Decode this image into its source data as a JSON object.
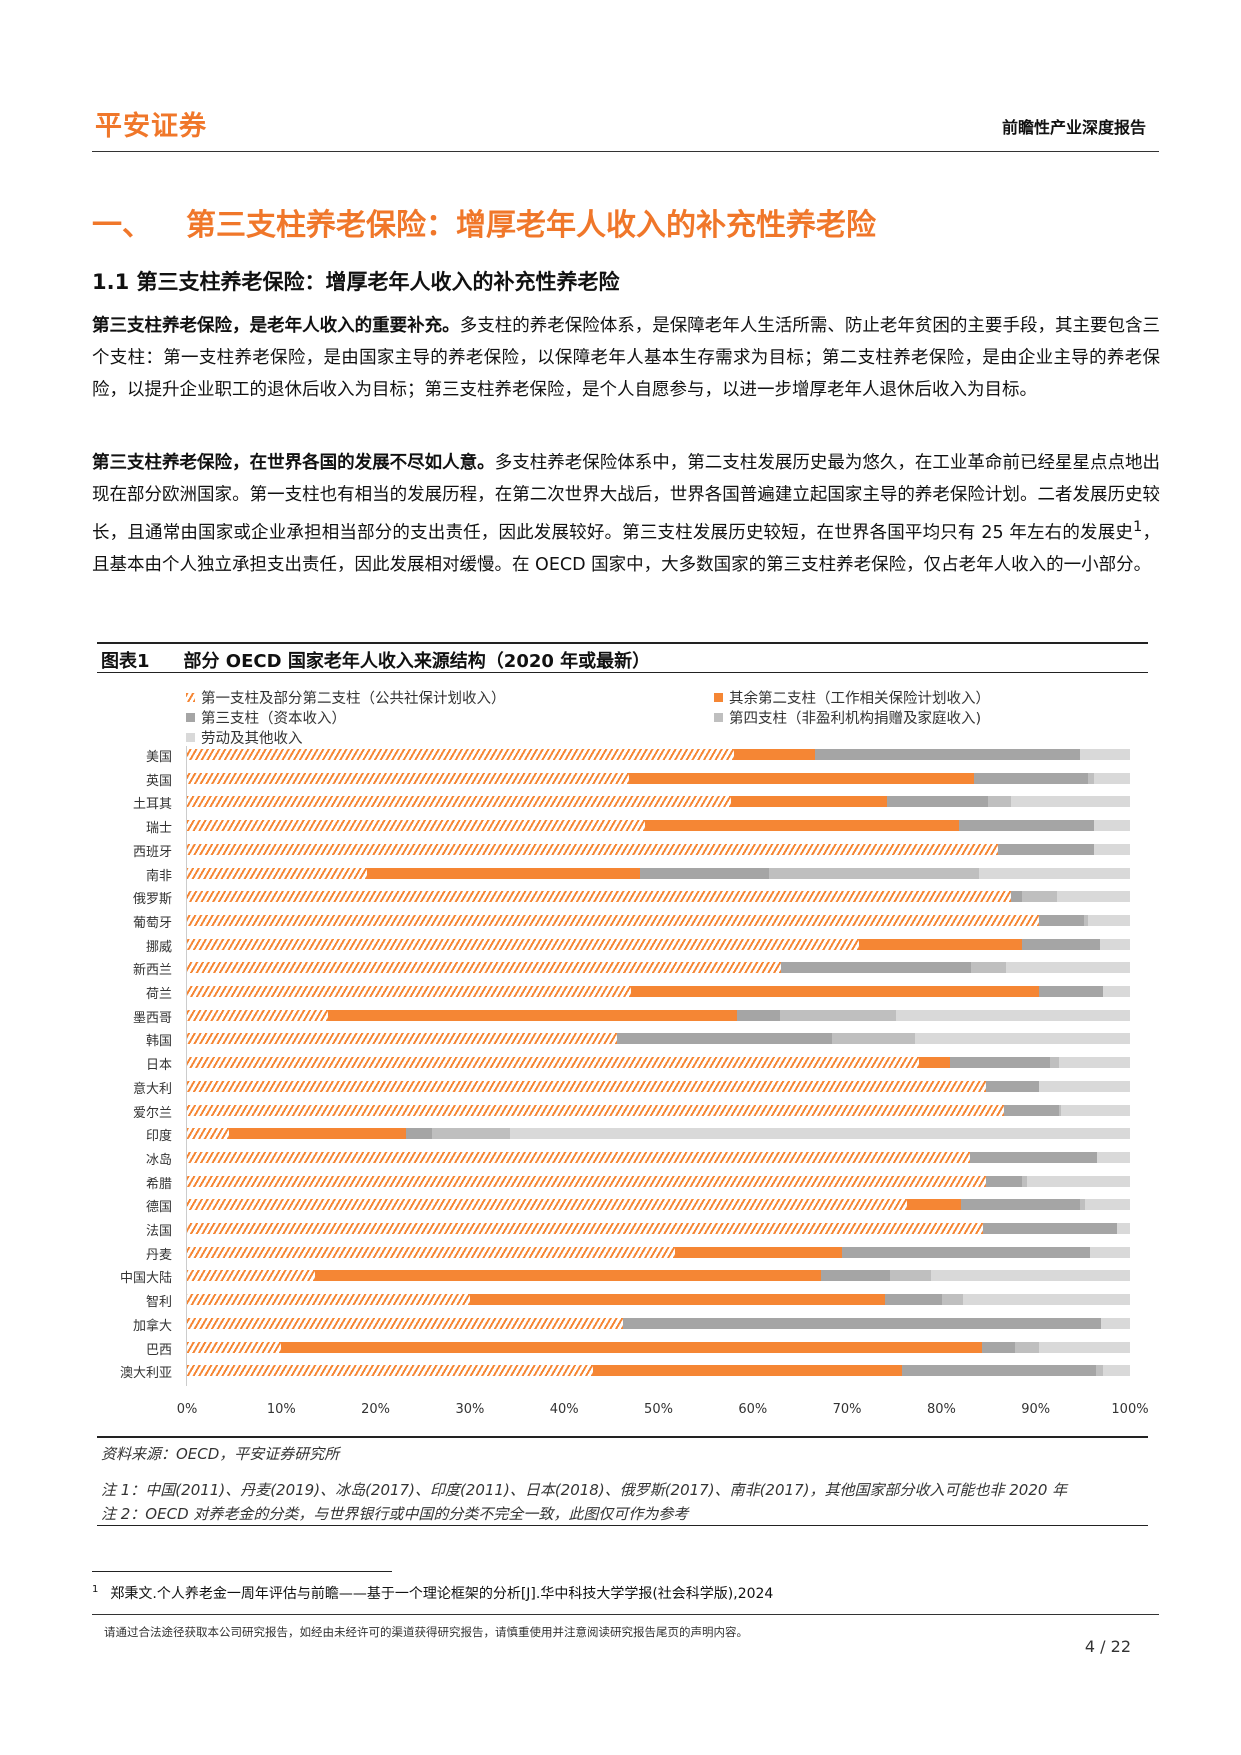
{
  "header": {
    "logo": "平安证券",
    "doc_type": "前瞻性产业深度报告"
  },
  "section": {
    "num": "一、",
    "title": "第三支柱养老保险：增厚老年人收入的补充性养老险"
  },
  "subsection": "1.1 第三支柱养老保险：增厚老年人收入的补充性养老险",
  "paragraphs": [
    {
      "lead": "第三支柱养老保险，是老年人收入的重要补充。",
      "body": "多支柱的养老保险体系，是保障老年人生活所需、防止老年贫困的主要手段，其主要包含三个支柱：第一支柱养老保险，是由国家主导的养老保险，以保障老年人基本生存需求为目标；第二支柱养老保险，是由企业主导的养老保险，以提升企业职工的退休后收入为目标；第三支柱养老保险，是个人自愿参与，以进一步增厚老年人退休后收入为目标。"
    },
    {
      "lead": "第三支柱养老保险，在世界各国的发展不尽如人意。",
      "body": "多支柱养老保险体系中，第二支柱发展历史最为悠久，在工业革命前已经星星点点地出现在部分欧洲国家。第一支柱也有相当的发展历程，在第二次世界大战后，世界各国普遍建立起国家主导的养老保险计划。二者发展历史较长，且通常由国家或企业承担相当部分的支出责任，因此发展较好。第三支柱发展历史较短，在世界各国平均只有 25 年左右的发展史",
      "sup": "1",
      "body2": "，且基本由个人独立承担支出责任，因此发展相对缓慢。在 OECD 国家中，大多数国家的第三支柱养老保险，仅占老年人收入的一小部分。"
    }
  ],
  "chart_data": {
    "type": "bar",
    "label": "图表1",
    "title": "部分 OECD 国家老年人收入来源结构（2020 年或最新）",
    "stacked": true,
    "orientation": "horizontal",
    "xlim": [
      0,
      100
    ],
    "x_ticks": [
      "0%",
      "10%",
      "20%",
      "30%",
      "40%",
      "50%",
      "60%",
      "70%",
      "80%",
      "90%",
      "100%"
    ],
    "categories": [
      "美国",
      "英国",
      "土耳其",
      "瑞士",
      "西班牙",
      "南非",
      "俄罗斯",
      "葡萄牙",
      "挪威",
      "新西兰",
      "荷兰",
      "墨西哥",
      "韩国",
      "日本",
      "意大利",
      "爱尔兰",
      "印度",
      "冰岛",
      "希腊",
      "德国",
      "法国",
      "丹麦",
      "中国大陆",
      "智利",
      "加拿大",
      "巴西",
      "澳大利亚"
    ],
    "series": [
      {
        "name": "第一支柱及部分第二支柱（公共社保计划收入）",
        "color": "#f58634",
        "pattern": "hatch",
        "values": [
          58,
          46.9,
          57.7,
          48.6,
          86,
          19.1,
          87.4,
          90.3,
          71.3,
          63,
          47.1,
          15,
          45.6,
          77.6,
          84.7,
          86.6,
          4.5,
          83,
          84.7,
          76.4,
          84.4,
          51.8,
          13.6,
          30,
          46.2,
          10,
          43.1
        ]
      },
      {
        "name": "其余第二支柱（工作相关保险计划收入）",
        "color": "#f58634",
        "values": [
          8.6,
          36.6,
          16.5,
          33.3,
          0,
          28.9,
          0,
          0,
          17.3,
          0,
          43.3,
          43.3,
          0,
          3.3,
          0,
          0,
          18.7,
          0,
          0,
          5.7,
          0,
          17.7,
          53.6,
          44,
          0,
          74.3,
          32.7
        ]
      },
      {
        "name": "第三支柱（资本收入）",
        "color": "#a5a5a5",
        "values": [
          28.1,
          12,
          10.7,
          14.3,
          10.2,
          13.7,
          1.2,
          4.8,
          8.2,
          20.1,
          6.7,
          4.6,
          22.8,
          10.6,
          5.6,
          5.9,
          2.8,
          13.5,
          3.9,
          12.6,
          14.2,
          26.3,
          7.3,
          6.1,
          50.7,
          3.5,
          20.6
        ]
      },
      {
        "name": "第四支柱（非盈利机构捐赠及家庭收入)",
        "color": "#bfbfbf",
        "values": [
          0,
          0.7,
          2.5,
          0,
          0,
          22.3,
          3.7,
          0.4,
          0,
          3.7,
          0,
          12.3,
          8.8,
          1,
          0,
          0.2,
          8.3,
          0,
          0.5,
          0.5,
          0,
          0,
          4.4,
          2.2,
          0,
          2.5,
          0.7
        ]
      },
      {
        "name": "劳动及其他收入",
        "color": "#d9d9d9",
        "values": [
          5.3,
          3.8,
          12.6,
          3.8,
          3.8,
          16,
          7.7,
          4.5,
          3.2,
          13.2,
          2.9,
          24.8,
          22.8,
          7.5,
          9.7,
          7.3,
          65.7,
          3.5,
          10.9,
          4.8,
          1.4,
          4.2,
          21.1,
          17.7,
          3.1,
          9.7,
          2.9
        ]
      }
    ]
  },
  "chart_notes": {
    "source": "资料来源：OECD，平安证券研究所",
    "note1": "注 1：中国(2011)、丹麦(2019)、冰岛(2017)、印度(2011)、日本(2018)、俄罗斯(2017)、南非(2017)，其他国家部分收入可能也非 2020 年",
    "note2": "注 2：OECD 对养老金的分类，与世界银行或中国的分类不完全一致，此图仅可作为参考"
  },
  "footnote": {
    "num": "1",
    "text": "郑秉文.个人养老金一周年评估与前瞻——基于一个理论框架的分析[J].华中科技大学学报(社会科学版),2024"
  },
  "footer": {
    "disclaimer": "请通过合法途径获取本公司研究报告，如经由未经许可的渠道获得研究报告，请慎重使用并注意阅读研究报告尾页的声明内容。",
    "page": "4 / 22"
  }
}
